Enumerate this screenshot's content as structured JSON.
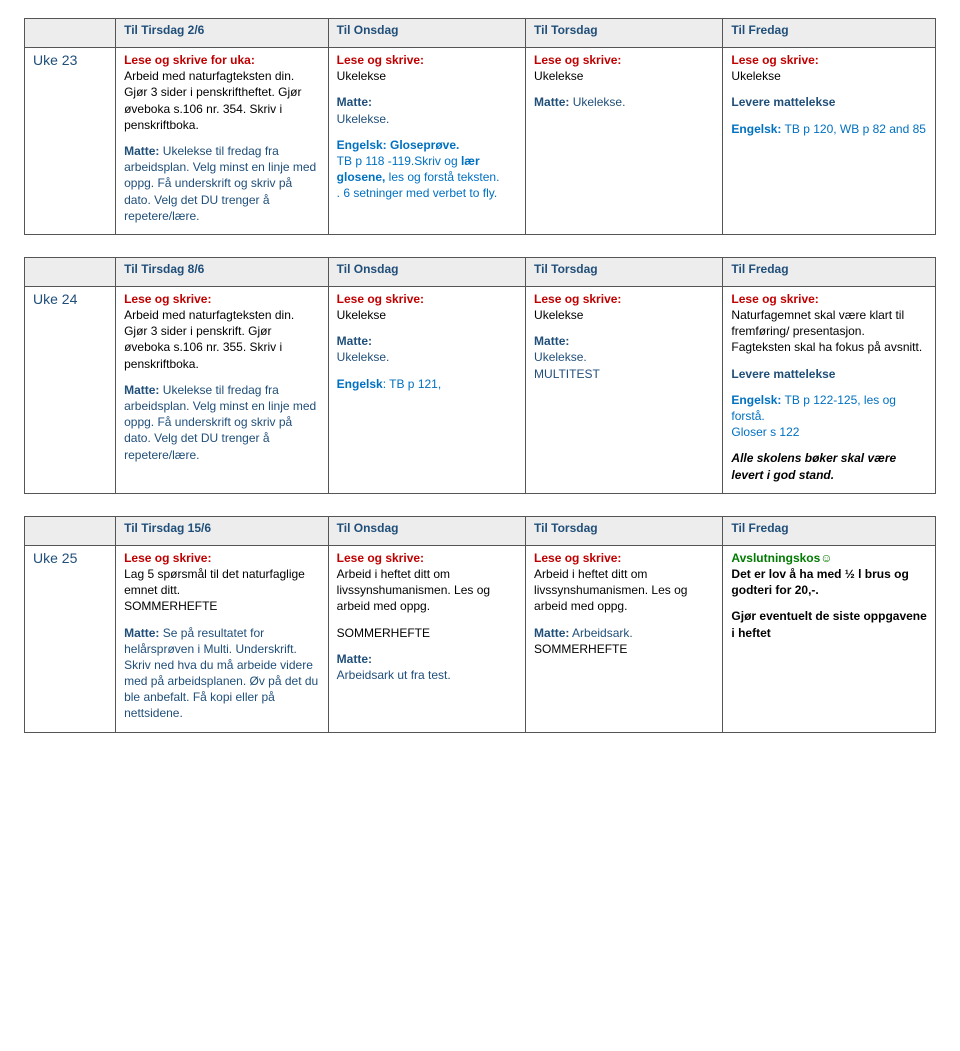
{
  "colors": {
    "header_bg": "#ededed",
    "header_text": "#1f4e79",
    "week_text": "#1f4e79",
    "red": "#c00000",
    "navy": "#1f4e79",
    "blue": "#0070c0",
    "green": "#007a00"
  },
  "tables": [
    {
      "week": "Uke 23",
      "headers": [
        "",
        "Til Tirsdag 2/6",
        "Til Onsdag",
        "Til Torsdag",
        "Til Fredag"
      ],
      "cells": {
        "c1": {
          "p1_label": "Lese og skrive for uka:",
          "p1_rest": "Arbeid med naturfagteksten din. Gjør 3 sider i penskriftheftet. Gjør øveboka s.106 nr. 354. Skriv i penskriftboka.",
          "p2_label": "Matte:",
          "p2_rest": " Ukelekse til fredag fra arbeidsplan. Velg minst en linje med oppg. Få underskrift og skriv på dato. Velg det DU trenger å repetere/lære."
        },
        "c2": {
          "p1_label": "Lese og skrive:",
          "p1_rest": "Ukelekse",
          "p2_label": "Matte:",
          "p2_rest": "Ukelekse.",
          "p3_label": "Engelsk: Gloseprøve.",
          "p3_rest1": "TB p 118 -119.",
          "p3_rest2": "Skriv og ",
          "p3_bold": "lær glosene,",
          "p3_rest3": " les og forstå teksten.",
          "p3_rest4": ". 6 setninger med verbet to fly."
        },
        "c3": {
          "p1_label": "Lese og skrive:",
          "p1_rest": "Ukelekse",
          "p2_label": "Matte:",
          "p2_rest": " Ukelekse."
        },
        "c4": {
          "p1_label": "Lese og skrive:",
          "p1_rest": "Ukelekse",
          "p2": "Levere mattelekse",
          "p3_label": "Engelsk:",
          "p3_rest": " TB p 120, WB p 82 and 85"
        }
      }
    },
    {
      "week": "Uke 24",
      "headers": [
        "",
        "Til Tirsdag 8/6",
        "Til Onsdag",
        "Til Torsdag",
        "Til Fredag"
      ],
      "cells": {
        "c1": {
          "p1_label": "Lese og skrive:",
          "p1_rest": "Arbeid med naturfagteksten din. Gjør 3 sider i penskrift. Gjør øveboka s.106 nr. 355. Skriv i penskriftboka.",
          "p2_label": "Matte:",
          "p2_rest": " Ukelekse til fredag fra arbeidsplan. Velg minst en linje med oppg. Få underskrift og skriv på dato. Velg det DU trenger å repetere/lære."
        },
        "c2": {
          "p1_label": "Lese og skrive:",
          "p1_rest": "Ukelekse",
          "p2_label": "Matte:",
          "p2_rest": "Ukelekse.",
          "p3_label": "Engelsk",
          "p3_rest": ": TB p 121,"
        },
        "c3": {
          "p1_label": "Lese og skrive:",
          "p1_rest": "Ukelekse",
          "p2_label": "Matte:",
          "p2_rest": "Ukelekse.",
          "p2_extra": "MULTITEST"
        },
        "c4": {
          "p1_label": "Lese og skrive:",
          "p1_rest": "Naturfagemnet skal være klart til fremføring/ presentasjon. Fagteksten skal ha fokus på avsnitt.",
          "p2": "Levere mattelekse",
          "p3_label": "Engelsk:",
          "p3_rest": " TB p 122-125, les og forstå.",
          "p3_rest2": "Gloser s 122",
          "p4": "Alle skolens bøker skal være levert i god stand."
        }
      }
    },
    {
      "week": "Uke 25",
      "headers": [
        "",
        "Til Tirsdag 15/6",
        "Til Onsdag",
        "Til Torsdag",
        "Til Fredag"
      ],
      "cells": {
        "c1": {
          "p1_label": "Lese og skrive:",
          "p1_rest": "Lag 5 spørsmål til det naturfaglige emnet ditt.",
          "p1_extra": "SOMMERHEFTE",
          "p2_label": "Matte:",
          "p2_rest": " Se på resultatet for helårsprøven i Multi. Underskrift. Skriv ned hva du må arbeide videre med på arbeidsplanen. Øv på det du ble anbefalt. Få kopi eller på nettsidene."
        },
        "c2": {
          "p1_label": "Lese og skrive:",
          "p1_rest": "Arbeid i heftet ditt om livssynshumanismen. Les og arbeid med oppg.",
          "p1_extra": "SOMMERHEFTE",
          "p2_label": "Matte:",
          "p2_rest": "Arbeidsark ut fra test."
        },
        "c3": {
          "p1_label": "Lese og skrive:",
          "p1_rest": "Arbeid i heftet ditt om livssynshumanismen. Les og arbeid med oppg.",
          "p2_label": "Matte:",
          "p2_rest": " Arbeidsark.",
          "p2_extra": "SOMMERHEFTE"
        },
        "c4": {
          "p1_label": "Avslutningskos☺",
          "p1_rest": "Det er lov å ha med ½ l brus og godteri for 20,-.",
          "p2": "Gjør eventuelt de siste oppgavene i heftet"
        }
      }
    }
  ]
}
